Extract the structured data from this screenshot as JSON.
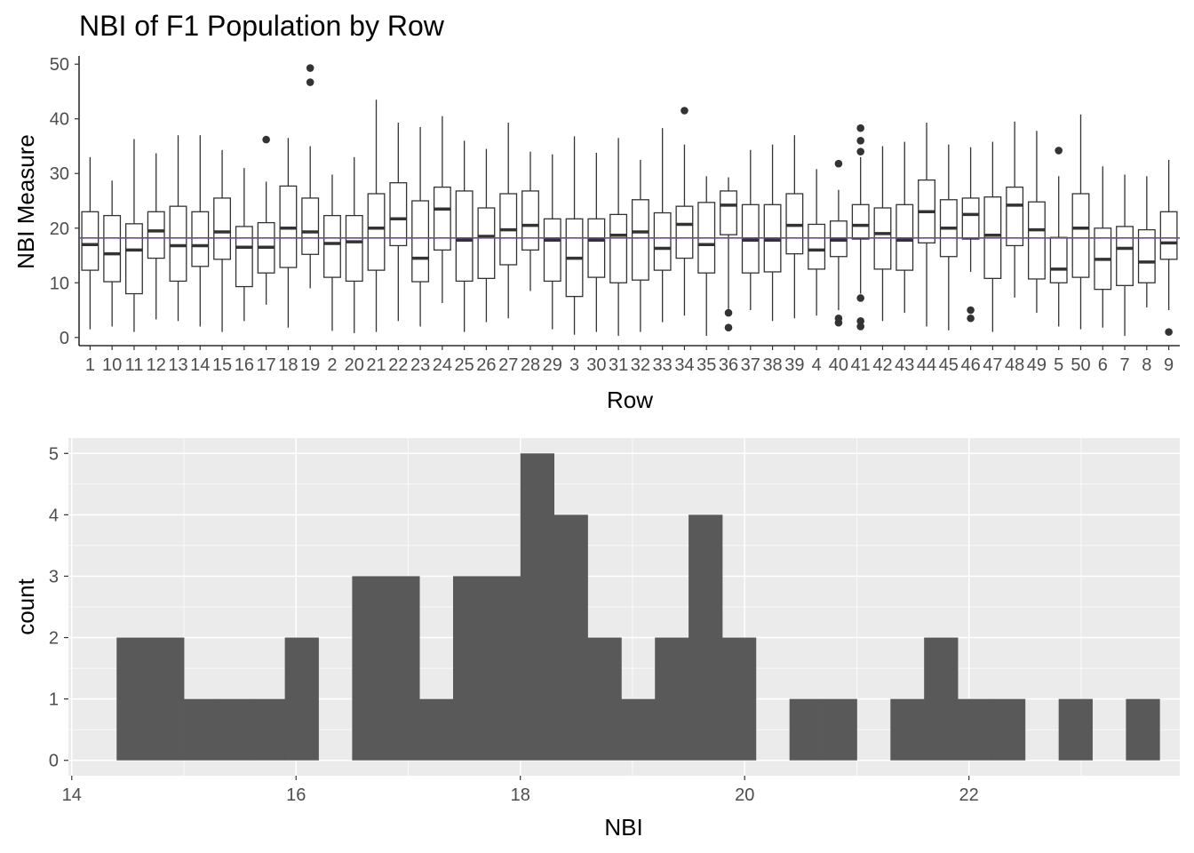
{
  "colors": {
    "box_stroke": "#333333",
    "mean_line": "#6a4c93",
    "hist_fill": "#595959",
    "panel_bg": "#ebebeb",
    "grid_major": "#ffffff"
  },
  "chart_data": [
    {
      "type": "box",
      "title": "NBI of F1 Population by Row",
      "xlabel": "Row",
      "ylabel": "NBI Measure",
      "ylim": [
        -1.5,
        51.5
      ],
      "yticks": [
        0,
        10,
        20,
        30,
        40,
        50
      ],
      "grid": false,
      "reference_line": 18.2,
      "categories": [
        "1",
        "10",
        "11",
        "12",
        "13",
        "14",
        "15",
        "16",
        "17",
        "18",
        "19",
        "2",
        "20",
        "21",
        "22",
        "23",
        "24",
        "25",
        "26",
        "27",
        "28",
        "29",
        "3",
        "30",
        "31",
        "32",
        "33",
        "34",
        "35",
        "36",
        "37",
        "38",
        "39",
        "4",
        "40",
        "41",
        "42",
        "43",
        "44",
        "45",
        "46",
        "47",
        "48",
        "49",
        "5",
        "50",
        "6",
        "7",
        "8",
        "9"
      ],
      "boxes": [
        {
          "min": 1.5,
          "q1": 12.3,
          "median": 17.0,
          "q3": 23.0,
          "max": 33.0,
          "outliers": []
        },
        {
          "min": 2.0,
          "q1": 10.2,
          "median": 15.3,
          "q3": 22.3,
          "max": 28.7,
          "outliers": []
        },
        {
          "min": 1.0,
          "q1": 8.0,
          "median": 16.0,
          "q3": 20.8,
          "max": 36.3,
          "outliers": []
        },
        {
          "min": 3.3,
          "q1": 14.5,
          "median": 19.5,
          "q3": 23.0,
          "max": 33.7,
          "outliers": []
        },
        {
          "min": 3.0,
          "q1": 10.3,
          "median": 16.8,
          "q3": 24.0,
          "max": 37.0,
          "outliers": []
        },
        {
          "min": 2.0,
          "q1": 13.0,
          "median": 16.8,
          "q3": 23.0,
          "max": 37.0,
          "outliers": []
        },
        {
          "min": 1.0,
          "q1": 14.3,
          "median": 19.3,
          "q3": 25.5,
          "max": 34.3,
          "outliers": []
        },
        {
          "min": 3.0,
          "q1": 9.3,
          "median": 16.5,
          "q3": 20.3,
          "max": 31.0,
          "outliers": []
        },
        {
          "min": 6.0,
          "q1": 11.8,
          "median": 16.5,
          "q3": 21.0,
          "max": 28.5,
          "outliers": [
            36.2
          ]
        },
        {
          "min": 1.8,
          "q1": 12.8,
          "median": 20.0,
          "q3": 27.7,
          "max": 36.5,
          "outliers": []
        },
        {
          "min": 9.0,
          "q1": 15.2,
          "median": 19.3,
          "q3": 25.5,
          "max": 35.0,
          "outliers": [
            46.7,
            49.3
          ]
        },
        {
          "min": 1.2,
          "q1": 11.0,
          "median": 17.2,
          "q3": 22.3,
          "max": 29.8,
          "outliers": []
        },
        {
          "min": 0.8,
          "q1": 10.3,
          "median": 17.5,
          "q3": 22.3,
          "max": 33.0,
          "outliers": []
        },
        {
          "min": 1.0,
          "q1": 12.3,
          "median": 20.0,
          "q3": 26.3,
          "max": 43.5,
          "outliers": []
        },
        {
          "min": 3.0,
          "q1": 16.8,
          "median": 21.7,
          "q3": 28.3,
          "max": 39.3,
          "outliers": []
        },
        {
          "min": 2.0,
          "q1": 10.2,
          "median": 14.5,
          "q3": 25.0,
          "max": 38.5,
          "outliers": []
        },
        {
          "min": 6.3,
          "q1": 16.0,
          "median": 23.5,
          "q3": 27.5,
          "max": 40.5,
          "outliers": []
        },
        {
          "min": 1.0,
          "q1": 10.3,
          "median": 17.8,
          "q3": 26.8,
          "max": 36.0,
          "outliers": []
        },
        {
          "min": 2.8,
          "q1": 10.8,
          "median": 18.5,
          "q3": 23.7,
          "max": 34.5,
          "outliers": []
        },
        {
          "min": 3.5,
          "q1": 13.3,
          "median": 19.7,
          "q3": 26.3,
          "max": 39.3,
          "outliers": []
        },
        {
          "min": 8.5,
          "q1": 16.0,
          "median": 20.5,
          "q3": 26.8,
          "max": 34.0,
          "outliers": []
        },
        {
          "min": 1.5,
          "q1": 10.3,
          "median": 17.8,
          "q3": 21.7,
          "max": 33.5,
          "outliers": []
        },
        {
          "min": 0.5,
          "q1": 7.5,
          "median": 14.5,
          "q3": 21.7,
          "max": 36.8,
          "outliers": []
        },
        {
          "min": 1.0,
          "q1": 11.0,
          "median": 17.8,
          "q3": 21.7,
          "max": 33.8,
          "outliers": []
        },
        {
          "min": 0.3,
          "q1": 10.0,
          "median": 18.7,
          "q3": 22.5,
          "max": 36.5,
          "outliers": []
        },
        {
          "min": 1.0,
          "q1": 10.5,
          "median": 19.3,
          "q3": 25.2,
          "max": 32.5,
          "outliers": []
        },
        {
          "min": 2.8,
          "q1": 12.3,
          "median": 16.3,
          "q3": 22.8,
          "max": 38.3,
          "outliers": []
        },
        {
          "min": 4.0,
          "q1": 14.5,
          "median": 20.7,
          "q3": 24.0,
          "max": 35.3,
          "outliers": [
            41.5
          ]
        },
        {
          "min": 0.3,
          "q1": 11.8,
          "median": 17.0,
          "q3": 24.7,
          "max": 29.5,
          "outliers": []
        },
        {
          "min": 4.0,
          "q1": 18.8,
          "median": 24.2,
          "q3": 26.8,
          "max": 29.3,
          "outliers": [
            1.8,
            4.5
          ]
        },
        {
          "min": 5.0,
          "q1": 11.8,
          "median": 17.8,
          "q3": 24.3,
          "max": 34.3,
          "outliers": []
        },
        {
          "min": 3.0,
          "q1": 12.0,
          "median": 17.8,
          "q3": 24.3,
          "max": 35.3,
          "outliers": []
        },
        {
          "min": 3.5,
          "q1": 15.3,
          "median": 20.5,
          "q3": 26.3,
          "max": 37.0,
          "outliers": []
        },
        {
          "min": 4.0,
          "q1": 12.5,
          "median": 16.0,
          "q3": 20.7,
          "max": 30.8,
          "outliers": []
        },
        {
          "min": 5.0,
          "q1": 14.8,
          "median": 17.8,
          "q3": 21.3,
          "max": 27.0,
          "outliers": [
            2.7,
            3.5,
            31.8
          ]
        },
        {
          "min": 8.0,
          "q1": 18.0,
          "median": 20.5,
          "q3": 24.3,
          "max": 33.0,
          "outliers": [
            2.0,
            3.0,
            7.2,
            34.0,
            36.0,
            38.3
          ]
        },
        {
          "min": 3.0,
          "q1": 12.5,
          "median": 19.0,
          "q3": 23.7,
          "max": 35.0,
          "outliers": []
        },
        {
          "min": 4.5,
          "q1": 12.3,
          "median": 17.8,
          "q3": 24.3,
          "max": 35.8,
          "outliers": []
        },
        {
          "min": 2.0,
          "q1": 17.3,
          "median": 23.0,
          "q3": 28.8,
          "max": 39.3,
          "outliers": []
        },
        {
          "min": 1.3,
          "q1": 14.8,
          "median": 20.0,
          "q3": 25.2,
          "max": 35.3,
          "outliers": []
        },
        {
          "min": 12.0,
          "q1": 18.0,
          "median": 22.5,
          "q3": 25.5,
          "max": 34.8,
          "outliers": [
            3.5,
            5.0
          ]
        },
        {
          "min": 1.0,
          "q1": 10.8,
          "median": 18.7,
          "q3": 25.7,
          "max": 35.8,
          "outliers": []
        },
        {
          "min": 7.3,
          "q1": 16.8,
          "median": 24.2,
          "q3": 27.5,
          "max": 39.5,
          "outliers": []
        },
        {
          "min": 4.5,
          "q1": 10.7,
          "median": 19.7,
          "q3": 24.8,
          "max": 37.8,
          "outliers": []
        },
        {
          "min": 2.0,
          "q1": 10.0,
          "median": 12.5,
          "q3": 18.3,
          "max": 29.5,
          "outliers": [
            34.2
          ]
        },
        {
          "min": 1.5,
          "q1": 11.0,
          "median": 20.0,
          "q3": 26.3,
          "max": 40.8,
          "outliers": []
        },
        {
          "min": 1.8,
          "q1": 8.8,
          "median": 14.3,
          "q3": 20.0,
          "max": 31.3,
          "outliers": []
        },
        {
          "min": 0.3,
          "q1": 9.5,
          "median": 16.3,
          "q3": 20.3,
          "max": 29.8,
          "outliers": []
        },
        {
          "min": 5.5,
          "q1": 10.0,
          "median": 13.8,
          "q3": 19.7,
          "max": 29.5,
          "outliers": []
        },
        {
          "min": 5.0,
          "q1": 14.3,
          "median": 17.3,
          "q3": 23.0,
          "max": 32.5,
          "outliers": [
            1.0
          ]
        }
      ]
    },
    {
      "type": "histogram",
      "title": "",
      "xlabel": "NBI",
      "ylabel": "count",
      "xlim": [
        13.97,
        23.88
      ],
      "ylim": [
        -0.25,
        5.25
      ],
      "xticks": [
        14,
        16,
        18,
        20,
        22
      ],
      "yticks": [
        0,
        1,
        2,
        3,
        4,
        5
      ],
      "grid": true,
      "bin_width": 0.3,
      "first_bin_start": 14.4,
      "counts": [
        2,
        2,
        1,
        1,
        1,
        2,
        0,
        3,
        3,
        1,
        3,
        3,
        5,
        4,
        2,
        1,
        2,
        4,
        2,
        0,
        1,
        1,
        0,
        1,
        2,
        1,
        1,
        0,
        1,
        0,
        1
      ]
    }
  ]
}
